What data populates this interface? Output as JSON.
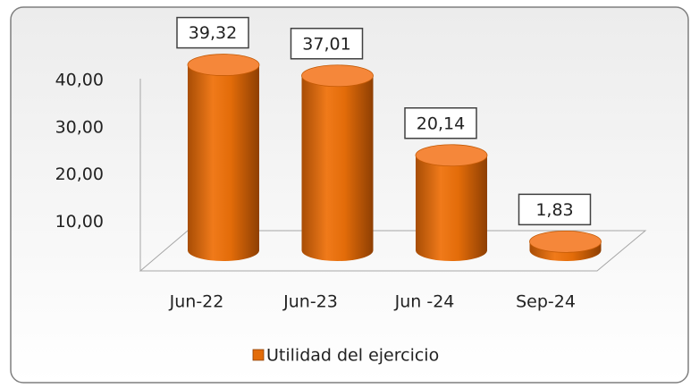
{
  "chart_data": {
    "type": "bar3d",
    "categories": [
      "Jun-22",
      "Jun-23",
      "Jun -24",
      "Sep-24"
    ],
    "series": [
      {
        "name": "Utilidad del ejercicio",
        "color": "#e36c09",
        "values": [
          39.32,
          37.01,
          20.14,
          1.83
        ],
        "value_labels": [
          "39,32",
          "37,01",
          "20,14",
          "1,83"
        ]
      }
    ],
    "ylim": [
      0,
      40
    ],
    "yticks": [
      {
        "value": 10,
        "label": "10,00"
      },
      {
        "value": 20,
        "label": "20,00"
      },
      {
        "value": 30,
        "label": "30,00"
      },
      {
        "value": 40,
        "label": "40,00"
      }
    ],
    "legend": "bottom"
  }
}
